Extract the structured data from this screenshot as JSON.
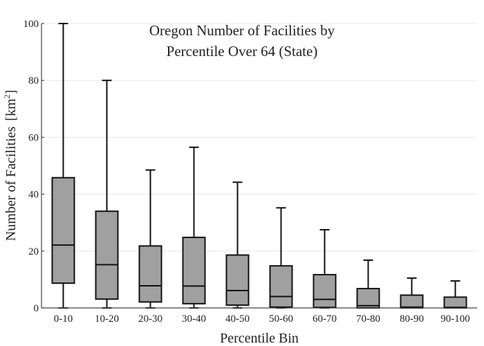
{
  "chart_data": {
    "type": "box",
    "title_lines": [
      "Oregon Number of Facilities by",
      "Percentile Over 64 (State)"
    ],
    "xlabel": "Percentile Bin",
    "ylabel": "Number of Facilities",
    "ylabel_unit_base": "[km",
    "ylabel_unit_sup": "2",
    "ylabel_unit_close": "]",
    "ylim": [
      0,
      100
    ],
    "yticks": [
      0,
      20,
      40,
      60,
      80,
      100
    ],
    "grid": true,
    "categories": [
      "0-10",
      "10-20",
      "20-30",
      "30-40",
      "40-50",
      "50-60",
      "60-70",
      "70-80",
      "80-90",
      "90-100"
    ],
    "boxes": [
      {
        "min": 0,
        "q1": 8.7,
        "median": 22.1,
        "q3": 45.8,
        "max": 100
      },
      {
        "min": 0,
        "q1": 3.1,
        "median": 15.2,
        "q3": 34.0,
        "max": 80
      },
      {
        "min": 0,
        "q1": 2.1,
        "median": 7.8,
        "q3": 21.8,
        "max": 48.5
      },
      {
        "min": 0,
        "q1": 1.5,
        "median": 7.7,
        "q3": 24.8,
        "max": 56.5
      },
      {
        "min": 0,
        "q1": 1.0,
        "median": 6.1,
        "q3": 18.6,
        "max": 44.2
      },
      {
        "min": 0,
        "q1": 0.3,
        "median": 4.0,
        "q3": 14.8,
        "max": 35.2
      },
      {
        "min": 0,
        "q1": 0.2,
        "median": 3.0,
        "q3": 11.7,
        "max": 27.5
      },
      {
        "min": 0,
        "q1": 0.0,
        "median": 0.8,
        "q3": 6.8,
        "max": 16.8
      },
      {
        "min": 0,
        "q1": 0.0,
        "median": 0.3,
        "q3": 4.5,
        "max": 10.5
      },
      {
        "min": 0,
        "q1": 0.0,
        "median": 0.2,
        "q3": 3.8,
        "max": 9.5
      }
    ]
  }
}
